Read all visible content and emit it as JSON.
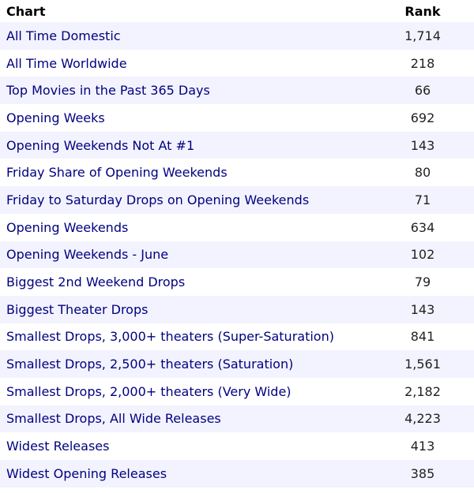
{
  "table": {
    "headers": {
      "chart": "Chart",
      "rank": "Rank"
    },
    "rows": [
      {
        "chart": "All Time Domestic",
        "rank": "1,714"
      },
      {
        "chart": "All Time Worldwide",
        "rank": "218"
      },
      {
        "chart": "Top Movies in the Past 365 Days",
        "rank": "66"
      },
      {
        "chart": "Opening Weeks",
        "rank": "692"
      },
      {
        "chart": "Opening Weekends Not At #1",
        "rank": "143"
      },
      {
        "chart": "Friday Share of Opening Weekends",
        "rank": "80"
      },
      {
        "chart": "Friday to Saturday Drops on Opening Weekends",
        "rank": "71"
      },
      {
        "chart": "Opening Weekends",
        "rank": "634"
      },
      {
        "chart": "Opening Weekends - June",
        "rank": "102"
      },
      {
        "chart": "Biggest 2nd Weekend Drops",
        "rank": "79"
      },
      {
        "chart": "Biggest Theater Drops",
        "rank": "143"
      },
      {
        "chart": "Smallest Drops, 3,000+ theaters (Super-Saturation)",
        "rank": "841"
      },
      {
        "chart": "Smallest Drops, 2,500+ theaters (Saturation)",
        "rank": "1,561"
      },
      {
        "chart": "Smallest Drops, 2,000+ theaters (Very Wide)",
        "rank": "2,182"
      },
      {
        "chart": "Smallest Drops, All Wide Releases",
        "rank": "4,223"
      },
      {
        "chart": "Widest Releases",
        "rank": "413"
      },
      {
        "chart": "Widest Opening Releases",
        "rank": "385"
      }
    ]
  },
  "colors": {
    "link": "#000080",
    "stripe": "#f3f3ff"
  }
}
